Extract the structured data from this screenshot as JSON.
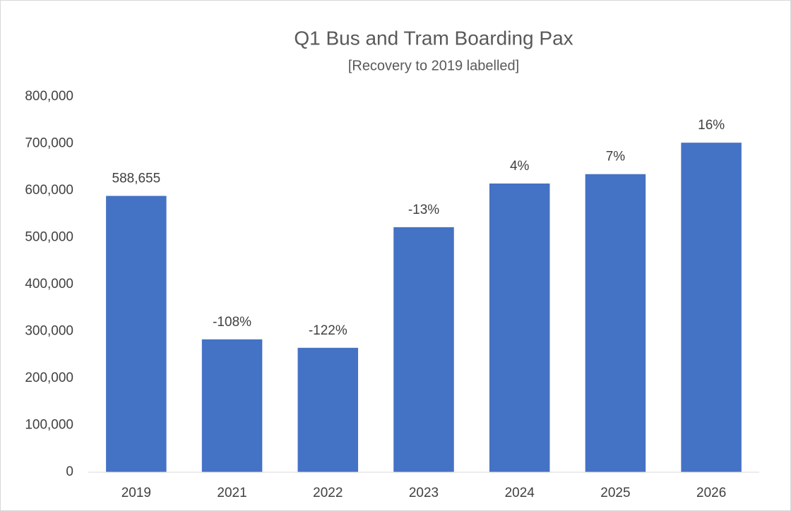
{
  "chart_data": {
    "type": "bar",
    "title": "Q1 Bus and Tram Boarding Pax",
    "subtitle": "[Recovery to 2019 labelled]",
    "categories": [
      "2019",
      "2021",
      "2022",
      "2023",
      "2024",
      "2025",
      "2026"
    ],
    "values": [
      588655,
      283000,
      265000,
      522000,
      615000,
      635000,
      702000
    ],
    "labels": [
      "588,655",
      "-108%",
      "-122%",
      "-13%",
      "4%",
      "7%",
      "16%"
    ],
    "color": "#4472c4",
    "ylim": [
      0,
      800000
    ],
    "yticks": [
      0,
      {
        "value": 100000,
        "label": "100,000"
      },
      {
        "value": 200000,
        "label": "200,000"
      },
      {
        "value": 300000,
        "label": "300,000"
      },
      {
        "value": 400000,
        "label": "400,000"
      },
      {
        "value": 500000,
        "label": "500,000"
      },
      {
        "value": 600000,
        "label": "600,000"
      },
      {
        "value": 700000,
        "label": "700,000"
      },
      {
        "value": 800000,
        "label": "800,000"
      }
    ],
    "grid": false
  }
}
